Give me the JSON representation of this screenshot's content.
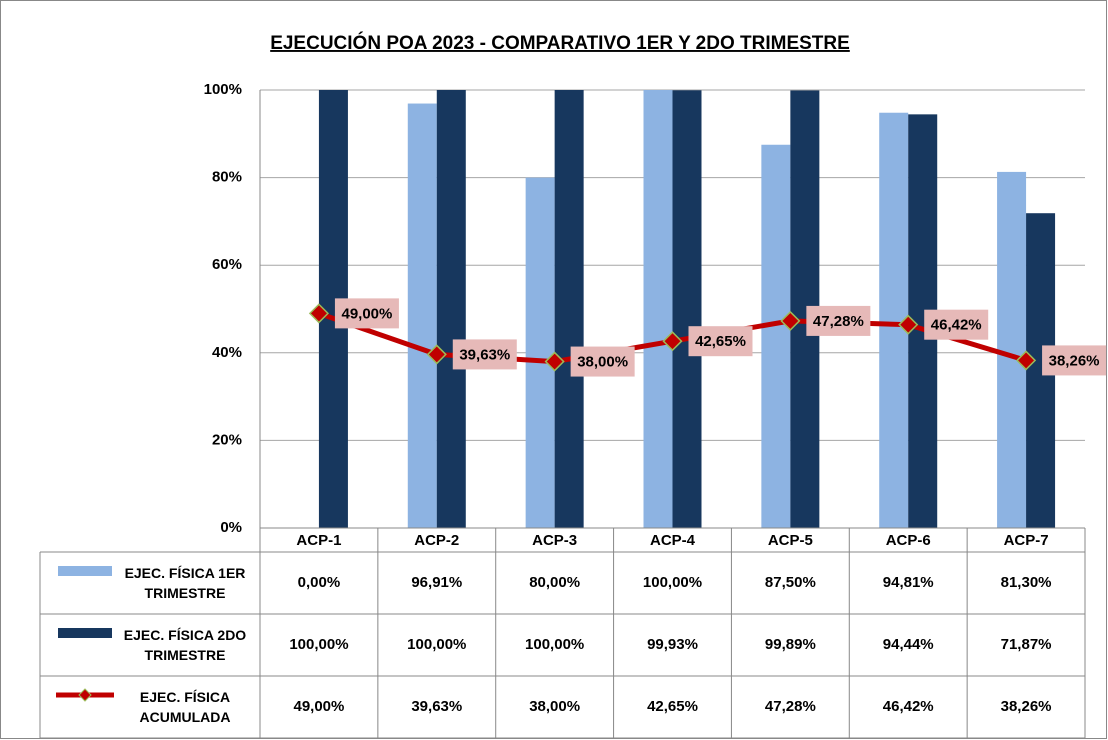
{
  "chart_data": {
    "type": "bar-line",
    "title": "EJECUCIÓN POA 2023 - COMPARATIVO 1ER Y 2DO TRIMESTRE",
    "categories": [
      "ACP-1",
      "ACP-2",
      "ACP-3",
      "ACP-4",
      "ACP-5",
      "ACP-6",
      "ACP-7"
    ],
    "series": [
      {
        "name": "EJEC. FÍSICA 1ER TRIMESTRE",
        "type": "bar",
        "color": "#8db3e2",
        "values": [
          0,
          96.91,
          80,
          100,
          87.5,
          94.81,
          81.3
        ],
        "value_labels": [
          "0,00%",
          "96,91%",
          "80,00%",
          "100,00%",
          "87,50%",
          "94,81%",
          "81,30%"
        ]
      },
      {
        "name": "EJEC. FÍSICA 2DO TRIMESTRE",
        "type": "bar",
        "color": "#17375e",
        "values": [
          100,
          100,
          100,
          99.93,
          99.89,
          94.44,
          71.87
        ],
        "value_labels": [
          "100,00%",
          "100,00%",
          "100,00%",
          "99,93%",
          "99,89%",
          "94,44%",
          "71,87%"
        ]
      },
      {
        "name": "EJEC. FÍSICA ACUMULADA",
        "type": "line",
        "color": "#c00000",
        "values": [
          49,
          39.63,
          38,
          42.65,
          47.28,
          46.42,
          38.26
        ],
        "value_labels": [
          "49,00%",
          "39,63%",
          "38,00%",
          "42,65%",
          "47,28%",
          "46,42%",
          "38,26%"
        ]
      }
    ],
    "ylim": [
      0,
      100
    ],
    "yticks": [
      {
        "value": 0,
        "label": "0%"
      },
      {
        "value": 20,
        "label": "20%"
      },
      {
        "value": 40,
        "label": "40%"
      },
      {
        "value": 60,
        "label": "60%"
      },
      {
        "value": 80,
        "label": "80%"
      },
      {
        "value": 100,
        "label": "100%"
      }
    ],
    "grid": true
  }
}
